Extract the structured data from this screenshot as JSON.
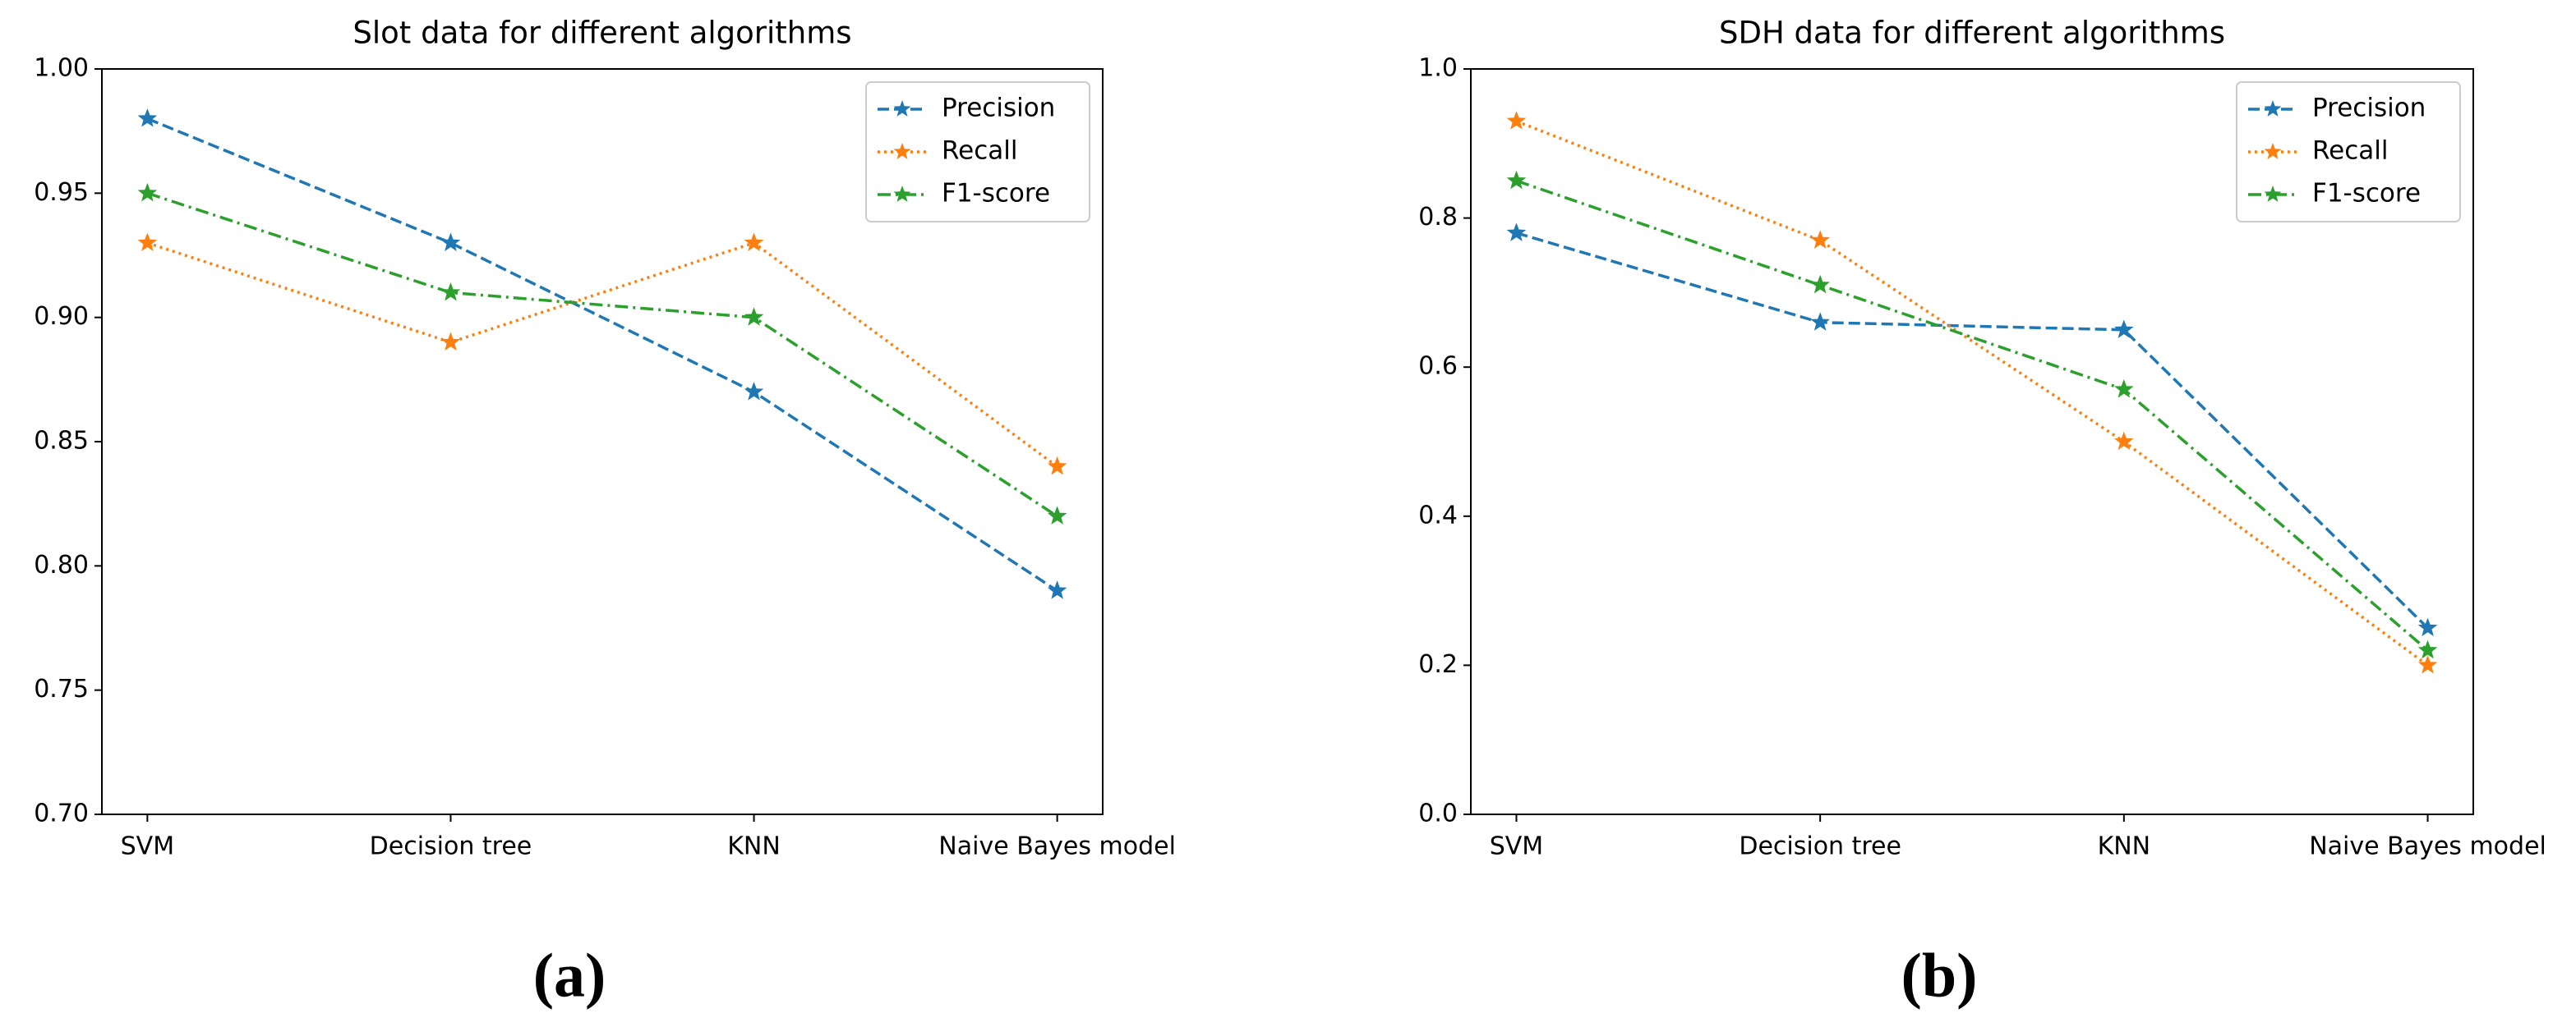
{
  "chart_data": [
    {
      "type": "line",
      "title": "Slot data for different algorithms",
      "caption": "(a)",
      "categories": [
        "SVM",
        "Decision tree",
        "KNN",
        "Naive Bayes model"
      ],
      "series": [
        {
          "name": "Precision",
          "color": "#1f77b4",
          "linestyle": "dashed",
          "values": [
            0.98,
            0.93,
            0.87,
            0.79
          ]
        },
        {
          "name": "Recall",
          "color": "#ff7f0e",
          "linestyle": "dotted",
          "values": [
            0.93,
            0.89,
            0.93,
            0.84
          ]
        },
        {
          "name": "F1-score",
          "color": "#2ca02c",
          "linestyle": "dashdot",
          "values": [
            0.95,
            0.91,
            0.9,
            0.82
          ]
        }
      ],
      "ylim": [
        0.7,
        1.0
      ],
      "yticks": [
        {
          "value": 0.7,
          "label": "0.70"
        },
        0.75,
        {
          "value": 0.8,
          "label": "0.80"
        },
        0.85,
        {
          "value": 0.9,
          "label": "0.90"
        },
        0.95,
        {
          "value": 1.0,
          "label": "1.00"
        }
      ],
      "legend": "upper right"
    },
    {
      "type": "line",
      "title": "SDH data for different algorithms",
      "caption": "(b)",
      "categories": [
        "SVM",
        "Decision tree",
        "KNN",
        "Naive Bayes model"
      ],
      "series": [
        {
          "name": "Precision",
          "color": "#1f77b4",
          "linestyle": "dashed",
          "values": [
            0.78,
            0.66,
            0.65,
            0.25
          ]
        },
        {
          "name": "Recall",
          "color": "#ff7f0e",
          "linestyle": "dotted",
          "values": [
            0.93,
            0.77,
            0.5,
            0.2
          ]
        },
        {
          "name": "F1-score",
          "color": "#2ca02c",
          "linestyle": "dashdot",
          "values": [
            0.85,
            0.71,
            0.57,
            0.22
          ]
        }
      ],
      "ylim": [
        0,
        1
      ],
      "yticks": [
        {
          "value": 0,
          "label": "0.0"
        },
        0.2,
        0.4,
        0.6,
        0.8,
        {
          "value": 1,
          "label": "1.0"
        }
      ],
      "legend": "upper right"
    }
  ]
}
